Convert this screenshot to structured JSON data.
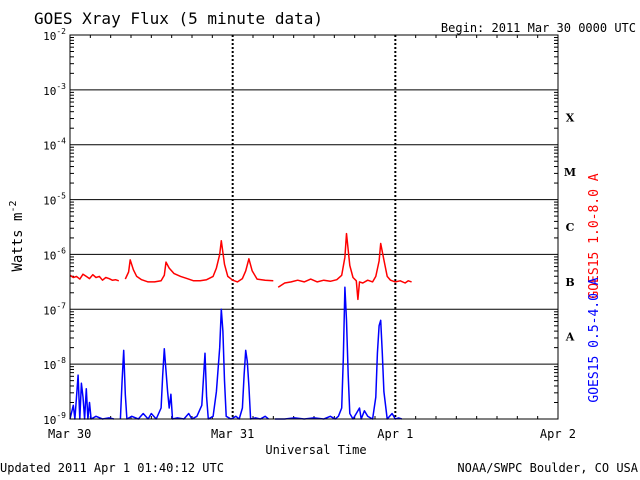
{
  "header": {
    "title": "GOES Xray Flux (5 minute data)",
    "begin": "Begin:  2011 Mar 30 0000 UTC"
  },
  "footer": {
    "updated": "Updated 2011 Apr  1 01:40:12 UTC",
    "credit": "NOAA/SWPC Boulder, CO USA"
  },
  "chart_data": {
    "type": "line",
    "title": "GOES Xray Flux (5 minute data)",
    "xlabel": "Universal Time",
    "ylabel": "Watts m",
    "ylabel_sup": "-2",
    "y_scale": "log",
    "ylim": [
      1e-09,
      0.01
    ],
    "xlim_days": [
      0,
      3
    ],
    "x_ticks": [
      {
        "day": 0,
        "label": "Mar 30"
      },
      {
        "day": 1,
        "label": "Mar 31"
      },
      {
        "day": 2,
        "label": "Apr 1"
      },
      {
        "day": 3,
        "label": "Apr 2"
      }
    ],
    "y_ticks": [
      {
        "exp": -9,
        "label": "10",
        "sup": "-9"
      },
      {
        "exp": -8,
        "label": "10",
        "sup": "-8"
      },
      {
        "exp": -7,
        "label": "10",
        "sup": "-7"
      },
      {
        "exp": -6,
        "label": "10",
        "sup": "-6"
      },
      {
        "exp": -5,
        "label": "10",
        "sup": "-5"
      },
      {
        "exp": -4,
        "label": "10",
        "sup": "-4"
      },
      {
        "exp": -3,
        "label": "10",
        "sup": "-3"
      },
      {
        "exp": -2,
        "label": "10",
        "sup": "-2"
      }
    ],
    "flare_classes": [
      {
        "label": "A",
        "exp": -7.5
      },
      {
        "label": "B",
        "exp": -6.5
      },
      {
        "label": "C",
        "exp": -5.5
      },
      {
        "label": "M",
        "exp": -4.5
      },
      {
        "label": "X",
        "exp": -3.5
      }
    ],
    "grid": "horizontal decades",
    "series": [
      {
        "name": "GOES15 1.0-8.0 A",
        "color": "#ff0000",
        "points": [
          [
            0.0,
            -6.38
          ],
          [
            0.02,
            -6.42
          ],
          [
            0.04,
            -6.4
          ],
          [
            0.06,
            -6.45
          ],
          [
            0.08,
            -6.36
          ],
          [
            0.1,
            -6.4
          ],
          [
            0.12,
            -6.44
          ],
          [
            0.14,
            -6.37
          ],
          [
            0.16,
            -6.42
          ],
          [
            0.18,
            -6.4
          ],
          [
            0.2,
            -6.47
          ],
          [
            0.22,
            -6.42
          ],
          [
            0.24,
            -6.44
          ],
          [
            0.26,
            -6.47
          ],
          [
            0.28,
            -6.46
          ],
          [
            0.3,
            -6.48
          ],
          null,
          [
            0.34,
            -6.45
          ],
          [
            0.36,
            -6.32
          ],
          [
            0.37,
            -6.1
          ],
          [
            0.39,
            -6.28
          ],
          [
            0.41,
            -6.4
          ],
          [
            0.44,
            -6.46
          ],
          [
            0.48,
            -6.5
          ],
          [
            0.52,
            -6.5
          ],
          [
            0.56,
            -6.48
          ],
          [
            0.58,
            -6.38
          ],
          [
            0.59,
            -6.14
          ],
          [
            0.61,
            -6.25
          ],
          [
            0.64,
            -6.35
          ],
          [
            0.68,
            -6.4
          ],
          [
            0.72,
            -6.44
          ],
          [
            0.76,
            -6.48
          ],
          [
            0.8,
            -6.48
          ],
          [
            0.84,
            -6.46
          ],
          [
            0.88,
            -6.4
          ],
          [
            0.9,
            -6.25
          ],
          [
            0.92,
            -6.0
          ],
          [
            0.93,
            -5.75
          ],
          [
            0.95,
            -6.18
          ],
          [
            0.97,
            -6.4
          ],
          [
            1.0,
            -6.47
          ],
          [
            1.03,
            -6.5
          ],
          [
            1.06,
            -6.44
          ],
          [
            1.08,
            -6.3
          ],
          [
            1.1,
            -6.08
          ],
          [
            1.12,
            -6.3
          ],
          [
            1.15,
            -6.45
          ],
          [
            1.2,
            -6.47
          ],
          [
            1.25,
            -6.48
          ],
          null,
          [
            1.28,
            -6.6
          ],
          [
            1.32,
            -6.52
          ],
          [
            1.36,
            -6.5
          ],
          [
            1.4,
            -6.47
          ],
          [
            1.44,
            -6.5
          ],
          [
            1.48,
            -6.45
          ],
          [
            1.52,
            -6.5
          ],
          [
            1.56,
            -6.47
          ],
          [
            1.6,
            -6.49
          ],
          [
            1.64,
            -6.46
          ],
          [
            1.67,
            -6.38
          ],
          [
            1.69,
            -6.05
          ],
          [
            1.7,
            -5.62
          ],
          [
            1.72,
            -6.2
          ],
          [
            1.74,
            -6.42
          ],
          [
            1.76,
            -6.48
          ],
          [
            1.77,
            -6.82
          ],
          [
            1.78,
            -6.5
          ],
          [
            1.8,
            -6.52
          ],
          [
            1.83,
            -6.47
          ],
          [
            1.86,
            -6.5
          ],
          [
            1.88,
            -6.4
          ],
          [
            1.9,
            -6.12
          ],
          [
            1.91,
            -5.8
          ],
          [
            1.93,
            -6.1
          ],
          [
            1.95,
            -6.4
          ],
          [
            1.97,
            -6.47
          ],
          [
            2.0,
            -6.5
          ],
          [
            2.03,
            -6.48
          ],
          [
            2.06,
            -6.52
          ],
          [
            2.08,
            -6.48
          ],
          [
            2.1,
            -6.5
          ]
        ]
      },
      {
        "name": "GOES15 0.5-4.0 A",
        "color": "#0000ff",
        "points": [
          [
            0.0,
            -9.0
          ],
          [
            0.02,
            -8.75
          ],
          [
            0.03,
            -9.0
          ],
          [
            0.05,
            -8.2
          ],
          [
            0.06,
            -9.0
          ],
          [
            0.07,
            -8.35
          ],
          [
            0.08,
            -8.6
          ],
          [
            0.09,
            -9.0
          ],
          [
            0.1,
            -8.45
          ],
          [
            0.11,
            -9.0
          ],
          [
            0.12,
            -8.7
          ],
          [
            0.13,
            -9.0
          ],
          [
            0.16,
            -8.95
          ],
          [
            0.2,
            -9.0
          ],
          [
            0.24,
            -8.98
          ],
          [
            0.27,
            -9.0
          ],
          null,
          [
            0.31,
            -9.0
          ],
          [
            0.32,
            -8.3
          ],
          [
            0.33,
            -7.75
          ],
          [
            0.34,
            -8.55
          ],
          [
            0.35,
            -9.0
          ],
          [
            0.38,
            -8.95
          ],
          [
            0.42,
            -9.0
          ],
          [
            0.45,
            -8.9
          ],
          [
            0.48,
            -9.0
          ],
          [
            0.5,
            -8.9
          ],
          [
            0.53,
            -9.0
          ],
          [
            0.56,
            -8.8
          ],
          [
            0.57,
            -8.2
          ],
          [
            0.58,
            -7.72
          ],
          [
            0.6,
            -8.5
          ],
          [
            0.61,
            -8.8
          ],
          [
            0.62,
            -8.55
          ],
          [
            0.63,
            -9.0
          ],
          [
            0.66,
            -8.98
          ],
          [
            0.7,
            -9.0
          ],
          [
            0.73,
            -8.9
          ],
          [
            0.75,
            -9.0
          ],
          [
            0.78,
            -8.95
          ],
          [
            0.81,
            -8.75
          ],
          [
            0.83,
            -7.8
          ],
          [
            0.84,
            -8.6
          ],
          [
            0.85,
            -9.0
          ],
          [
            0.88,
            -8.95
          ],
          [
            0.9,
            -8.5
          ],
          [
            0.92,
            -7.7
          ],
          [
            0.93,
            -7.0
          ],
          [
            0.94,
            -7.4
          ],
          [
            0.95,
            -8.3
          ],
          [
            0.96,
            -8.95
          ],
          [
            0.99,
            -9.0
          ],
          [
            1.02,
            -8.95
          ],
          [
            1.04,
            -9.0
          ],
          [
            1.06,
            -8.8
          ],
          [
            1.07,
            -8.2
          ],
          [
            1.08,
            -7.75
          ],
          [
            1.09,
            -7.95
          ],
          [
            1.1,
            -8.4
          ],
          [
            1.11,
            -9.0
          ],
          [
            1.14,
            -8.98
          ],
          [
            1.17,
            -9.0
          ],
          [
            1.2,
            -8.95
          ],
          [
            1.22,
            -9.0
          ],
          null,
          [
            1.26,
            -9.0
          ],
          [
            1.32,
            -9.0
          ],
          [
            1.38,
            -8.98
          ],
          [
            1.44,
            -9.0
          ],
          [
            1.5,
            -8.98
          ],
          [
            1.56,
            -9.0
          ],
          [
            1.6,
            -8.95
          ],
          [
            1.63,
            -9.0
          ],
          [
            1.65,
            -8.95
          ],
          [
            1.67,
            -8.8
          ],
          [
            1.68,
            -7.9
          ],
          [
            1.69,
            -6.6
          ],
          [
            1.7,
            -7.2
          ],
          [
            1.71,
            -8.2
          ],
          [
            1.72,
            -8.9
          ],
          [
            1.74,
            -9.0
          ],
          [
            1.76,
            -8.9
          ],
          [
            1.78,
            -8.8
          ],
          [
            1.79,
            -9.0
          ],
          [
            1.81,
            -8.85
          ],
          [
            1.83,
            -8.95
          ],
          [
            1.86,
            -9.0
          ],
          [
            1.88,
            -8.6
          ],
          [
            1.89,
            -7.8
          ],
          [
            1.9,
            -7.3
          ],
          [
            1.91,
            -7.2
          ],
          [
            1.92,
            -7.8
          ],
          [
            1.93,
            -8.5
          ],
          [
            1.95,
            -9.0
          ],
          [
            1.98,
            -8.9
          ],
          [
            2.0,
            -9.0
          ],
          [
            2.02,
            -8.98
          ],
          [
            2.04,
            -9.0
          ]
        ]
      }
    ]
  }
}
